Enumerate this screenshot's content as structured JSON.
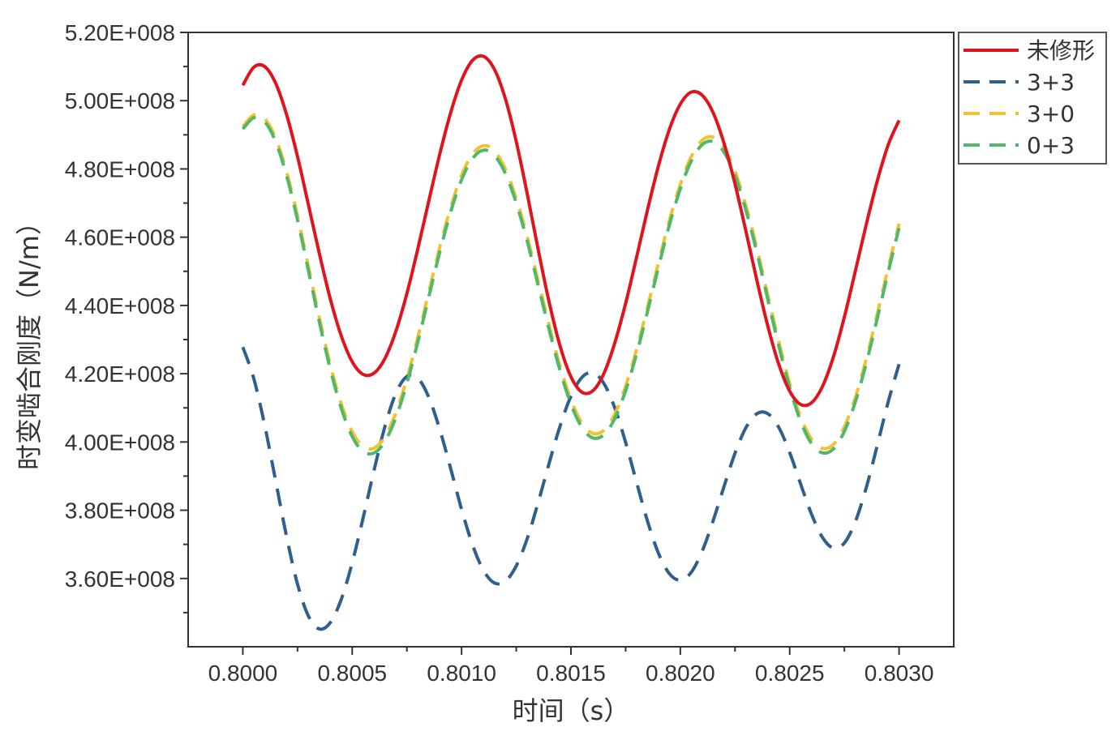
{
  "chart_data": {
    "type": "line",
    "title": "",
    "xlabel": "时间（s）",
    "ylabel": "时变啮合刚度（N/m）",
    "xlim": [
      0.79975,
      0.80325
    ],
    "ylim": [
      340000000.0,
      520000000.0
    ],
    "x_ticks": [
      0.8,
      0.8005,
      0.801,
      0.8015,
      0.802,
      0.8025,
      0.803
    ],
    "x_tick_labels": [
      "0.8000",
      "0.8005",
      "0.8010",
      "0.8015",
      "0.8020",
      "0.8025",
      "0.8030"
    ],
    "y_ticks": [
      360000000.0,
      380000000.0,
      400000000.0,
      420000000.0,
      440000000.0,
      460000000.0,
      480000000.0,
      500000000.0,
      520000000.0
    ],
    "y_tick_labels": [
      "3.60E+008",
      "3.80E+008",
      "4.00E+008",
      "4.20E+008",
      "4.40E+008",
      "4.60E+008",
      "4.80E+008",
      "5.00E+008",
      "5.20E+008"
    ],
    "grid": false,
    "legend_position": "outside-top-right",
    "x": [
      0.8,
      0.80005,
      0.8001,
      0.80015,
      0.8002,
      0.80025,
      0.8003,
      0.80035,
      0.8004,
      0.80045,
      0.8005,
      0.80055,
      0.8006,
      0.80065,
      0.8007,
      0.80075,
      0.8008,
      0.80085,
      0.8009,
      0.80095,
      0.801,
      0.80105,
      0.8011,
      0.80115,
      0.8012,
      0.80125,
      0.8013,
      0.80135,
      0.8014,
      0.80145,
      0.8015,
      0.80155,
      0.8016,
      0.80165,
      0.8017,
      0.80175,
      0.8018,
      0.80185,
      0.8019,
      0.80195,
      0.802,
      0.80205,
      0.8021,
      0.80215,
      0.8022,
      0.80225,
      0.8023,
      0.80235,
      0.8024,
      0.80245,
      0.8025,
      0.80255,
      0.8026,
      0.80265,
      0.8027,
      0.80275,
      0.8028,
      0.80285,
      0.8029,
      0.80295,
      0.803
    ],
    "series": [
      {
        "name": "未修形",
        "style": "solid",
        "color": "#e0141c",
        "values": [
          504500000.0,
          509800000.0,
          510000000.0,
          505100000.0,
          495900000.0,
          483600000.0,
          469500000.0,
          455200000.0,
          441900000.0,
          431100000.0,
          423500000.0,
          419800000.0,
          420200000.0,
          424500000.0,
          432500000.0,
          443500000.0,
          456600000.0,
          470600000.0,
          484300000.0,
          496500000.0,
          506000000.0,
          511800000.0,
          513000000.0,
          509200000.0,
          500600000.0,
          488000000.0,
          472700000.0,
          456500000.0,
          441100000.0,
          428200000.0,
          419100000.0,
          414600000.0,
          415000000.0,
          420000000.0,
          428900000.0,
          440600000.0,
          454100000.0,
          468000000.0,
          480900000.0,
          491600000.0,
          499000000.0,
          502500000.0,
          501600000.0,
          496500000.0,
          487500000.0,
          475600000.0,
          461700000.0,
          447300000.0,
          434000000.0,
          422800000.0,
          414900000.0,
          411000000.0,
          411500000.0,
          416300000.0,
          425000000.0,
          436600000.0,
          450000000.0,
          463700000.0,
          476400000.0,
          487000000.0,
          494200000.0
        ]
      },
      {
        "name": "3+3",
        "style": "dashed",
        "color": "#2e5f8f",
        "values": [
          427800000.0,
          418600000.0,
          404900000.0,
          388600000.0,
          372200000.0,
          358300000.0,
          349000000.0,
          345200000.0,
          347100000.0,
          353900000.0,
          364600000.0,
          377800000.0,
          391800000.0,
          404600000.0,
          414300000.0,
          419200000.0,
          418700000.0,
          413100000.0,
          403700000.0,
          392200000.0,
          380300000.0,
          369900000.0,
          362400000.0,
          358700000.0,
          359200000.0,
          363700000.0,
          371700000.0,
          382200000.0,
          393700000.0,
          404600000.0,
          413400000.0,
          418900000.0,
          420300000.0,
          417200000.0,
          410100000.0,
          399900000.0,
          388200000.0,
          376800000.0,
          367400000.0,
          361400000.0,
          359500000.0,
          361800000.0,
          368000000.0,
          376900000.0,
          387000000.0,
          396700000.0,
          404200000.0,
          408300000.0,
          408300000.0,
          404300000.0,
          396900000.0,
          387700000.0,
          378800000.0,
          372000000.0,
          368900000.0,
          370400000.0,
          376600000.0,
          386600000.0,
          398900000.0,
          411700000.0,
          422800000.0
        ]
      },
      {
        "name": "3+0",
        "style": "dashed",
        "color": "#f2c12e",
        "values": [
          492400000.0,
          495800000.0,
          494700000.0,
          489000000.0,
          479100000.0,
          466200000.0,
          451400000.0,
          436400000.0,
          422600000.0,
          411200000.0,
          403000000.0,
          398600000.0,
          398200000.0,
          401600000.0,
          408600000.0,
          418600000.0,
          430700000.0,
          443900000.0,
          457000000.0,
          468700000.0,
          478100000.0,
          484300000.0,
          486800000.0,
          485300000.0,
          480000000.0,
          471300000.0,
          460100000.0,
          447300000.0,
          434300000.0,
          422300000.0,
          412400000.0,
          405600000.0,
          402500000.0,
          403400000.0,
          408100000.0,
          416300000.0,
          427100000.0,
          439500000.0,
          452500000.0,
          464900000.0,
          475500000.0,
          483600000.0,
          488400000.0,
          489300000.0,
          486200000.0,
          479300000.0,
          469200000.0,
          456800000.0,
          443100000.0,
          429500000.0,
          417200000.0,
          407400000.0,
          400800000.0,
          398100000.0,
          399300000.0,
          404400000.0,
          413000000.0,
          424300000.0,
          437400000.0,
          451000000.0,
          464000000.0
        ]
      },
      {
        "name": "0+3",
        "style": "dashed",
        "color": "#4fb86b",
        "values": [
          491700000.0,
          495000000.0,
          493800000.0,
          488000000.0,
          478000000.0,
          465000000.0,
          450200000.0,
          435100000.0,
          421300000.0,
          409900000.0,
          401600000.0,
          397200000.0,
          396800000.0,
          400200000.0,
          407200000.0,
          417200000.0,
          429300000.0,
          442500000.0,
          455600000.0,
          467400000.0,
          476800000.0,
          483000000.0,
          485500000.0,
          484000000.0,
          478700000.0,
          470000000.0,
          458800000.0,
          446000000.0,
          433000000.0,
          421000000.0,
          411100000.0,
          404300000.0,
          401200000.0,
          402100000.0,
          406800000.0,
          415000000.0,
          425800000.0,
          438200000.0,
          451200000.0,
          463600000.0,
          474200000.0,
          482300000.0,
          487100000.0,
          488000000.0,
          484900000.0,
          478000000.0,
          467900000.0,
          455500000.0,
          441800000.0,
          428200000.0,
          415900000.0,
          406100000.0,
          399500000.0,
          396800000.0,
          398000000.0,
          403100000.0,
          411700000.0,
          423000000.0,
          436100000.0,
          449700000.0,
          462700000.0
        ]
      }
    ]
  }
}
